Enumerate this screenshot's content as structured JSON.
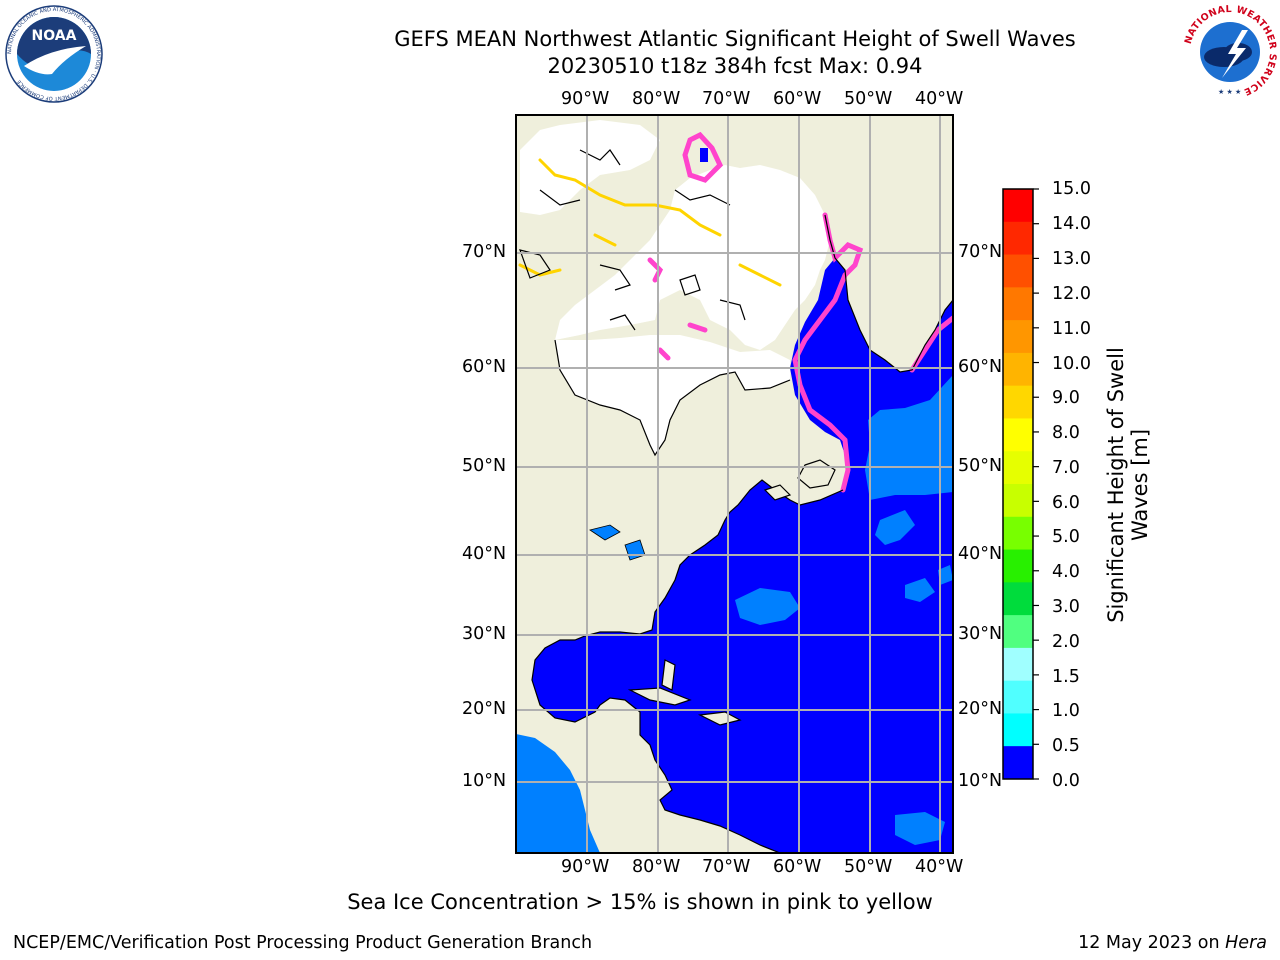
{
  "header": {
    "title": "GEFS MEAN Northwest Atlantic Significant Height of Swell Waves",
    "subtitle": "20230510 t18z 384h fcst   Max: 0.94"
  },
  "logos": {
    "left": {
      "text": "NOAA",
      "ring_text": "NATIONAL OCEANIC AND ATMOSPHERIC ADMINISTRATION · U.S. DEPARTMENT OF COMMERCE"
    },
    "right": {
      "ring_text": "NATIONAL WEATHER SERVICE"
    }
  },
  "map": {
    "lon_labels": [
      "90°W",
      "80°W",
      "70°W",
      "60°W",
      "50°W",
      "40°W"
    ],
    "lat_labels": [
      "70°N",
      "60°N",
      "50°N",
      "40°N",
      "30°N",
      "20°N",
      "10°N"
    ],
    "colors": {
      "land": "#efefdc",
      "sea_low": "#0000ff",
      "sea_mid": "#0080ff",
      "ice": "#ffffff",
      "ice_edge": "#ff44cc",
      "grid": "#b0b0b0"
    }
  },
  "colorbar": {
    "label": "Significant Height of Swell Waves [m]",
    "label_line1": "Significant Height of Swell",
    "label_line2": "Waves [m]",
    "ticks": [
      "15.0",
      "14.0",
      "13.0",
      "12.0",
      "11.0",
      "10.0",
      "9.0",
      "8.0",
      "7.0",
      "6.0",
      "5.0",
      "4.0",
      "3.0",
      "2.0",
      "1.5",
      "1.0",
      "0.5",
      "0.0"
    ],
    "colors": [
      "#ff0000",
      "#ff2800",
      "#ff5000",
      "#ff7800",
      "#ff9600",
      "#ffb400",
      "#ffd700",
      "#ffff00",
      "#e6ff00",
      "#c8ff00",
      "#78ff00",
      "#28f000",
      "#00dc3c",
      "#50ff80",
      "#a0ffff",
      "#50ffff",
      "#00ffff",
      "#0080ff",
      "#0000ff"
    ]
  },
  "note": "Sea Ice Concentration > 15% is shown in pink to yellow",
  "footer": {
    "left": "NCEP/EMC/Verification Post Processing Product Generation Branch",
    "right_prefix": "12 May 2023 on ",
    "right_host": "Hera"
  }
}
